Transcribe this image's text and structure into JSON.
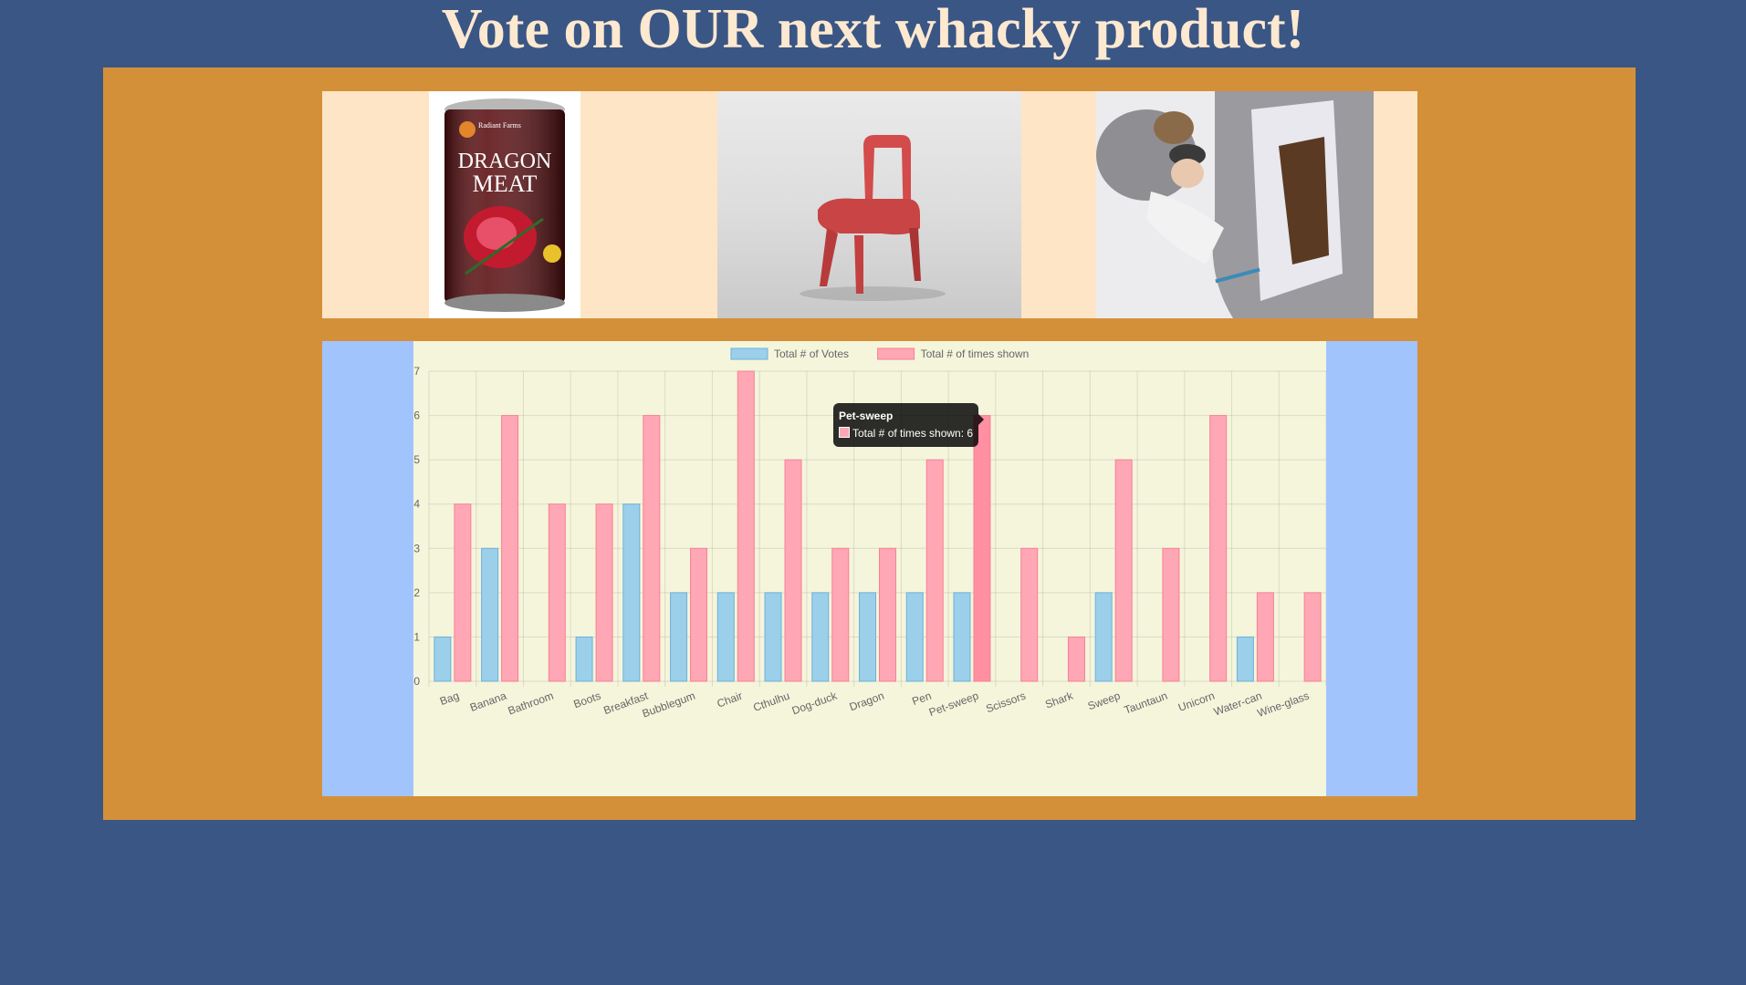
{
  "header": {
    "title": "Vote on OUR next whacky product!"
  },
  "products": [
    {
      "name": "dragon-meat-can",
      "label": "DRAGON MEAT",
      "brand": "Radiant Farms"
    },
    {
      "name": "chair"
    },
    {
      "name": "tauntaun-sleeping-bag"
    }
  ],
  "chart_data": {
    "type": "bar",
    "categories": [
      "Bag",
      "Banana",
      "Bathroom",
      "Boots",
      "Breakfast",
      "Bubblegum",
      "Chair",
      "Cthulhu",
      "Dog-duck",
      "Dragon",
      "Pen",
      "Pet-sweep",
      "Scissors",
      "Shark",
      "Sweep",
      "Tauntaun",
      "Unicorn",
      "Water-can",
      "Wine-glass"
    ],
    "series": [
      {
        "name": "Total # of Votes",
        "values": [
          1,
          3,
          0,
          1,
          4,
          2,
          2,
          2,
          2,
          2,
          2,
          2,
          0,
          0,
          2,
          0,
          0,
          1,
          0
        ],
        "color": "#9ccfea",
        "border": "#6bb2d9"
      },
      {
        "name": "Total # of times shown",
        "values": [
          4,
          6,
          4,
          4,
          6,
          3,
          7,
          5,
          3,
          3,
          5,
          6,
          3,
          1,
          5,
          3,
          6,
          2,
          2
        ],
        "color": "#ffa7b4",
        "border": "#f78195"
      }
    ],
    "ylim": [
      0,
      7
    ],
    "yticks": [
      0,
      1,
      2,
      3,
      4,
      5,
      6,
      7
    ],
    "grid": true,
    "legend": "top-center",
    "tooltip": {
      "title": "Pet-sweep",
      "label": "Total # of times shown: 6",
      "category": "Pet-sweep",
      "series": 1
    }
  },
  "colors": {
    "background": "#3a5685",
    "panel": "#d49039",
    "product_strip": "#fde5c5",
    "chart_side": "#a2c4fd",
    "chart_bg": "#f5f5dc",
    "title": "#fde8d0"
  }
}
